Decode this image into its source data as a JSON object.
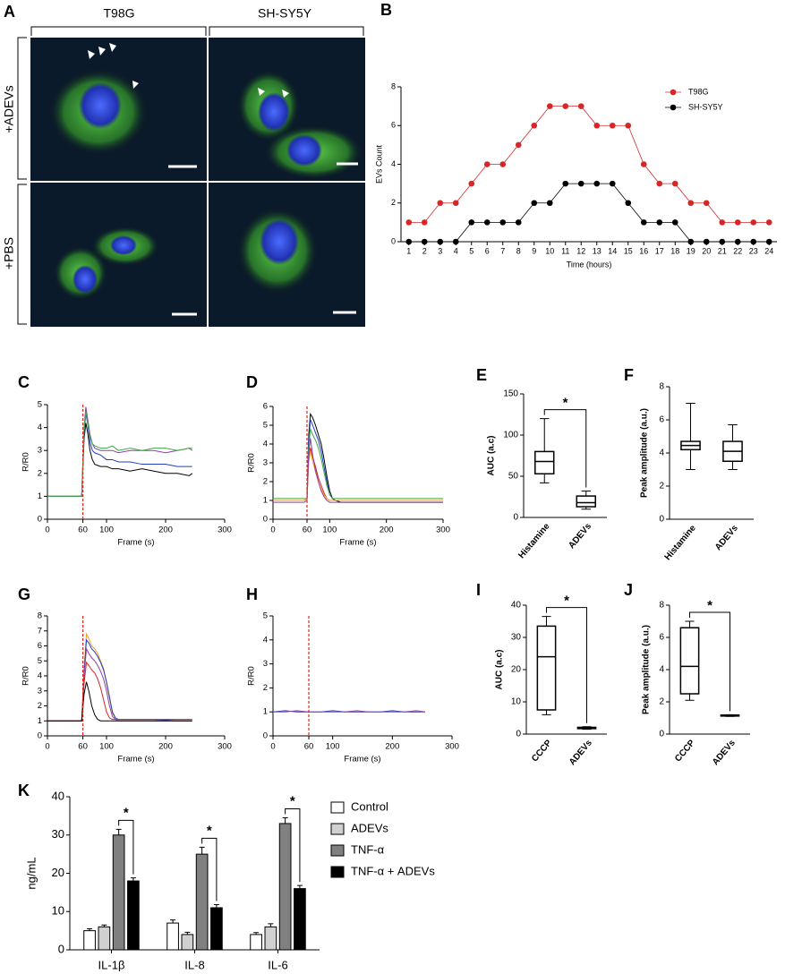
{
  "micrograph": {
    "label": "A",
    "columns": [
      "T98G",
      "SH-SY5Y"
    ],
    "rows": [
      "+ADEVs",
      "+PBS"
    ]
  },
  "chart_data": [
    {
      "label": "B",
      "type": "line",
      "markers": true,
      "categories": [
        "1",
        "2",
        "3",
        "4",
        "5",
        "6",
        "7",
        "8",
        "9",
        "10",
        "11",
        "12",
        "13",
        "14",
        "15",
        "16",
        "17",
        "18",
        "19",
        "20",
        "21",
        "22",
        "23",
        "24"
      ],
      "series": [
        {
          "name": "T98G",
          "color": "#d62728",
          "values": [
            1,
            1,
            2,
            2,
            3,
            4,
            4,
            5,
            6,
            7,
            7,
            7,
            6,
            6,
            6,
            4,
            3,
            3,
            2,
            2,
            1,
            1,
            1,
            1
          ]
        },
        {
          "name": "SH-SY5Y",
          "color": "#000000",
          "values": [
            0,
            0,
            0,
            0,
            1,
            1,
            1,
            1,
            2,
            2,
            3,
            3,
            3,
            3,
            2,
            1,
            1,
            1,
            0,
            0,
            0,
            0,
            0,
            0
          ]
        }
      ],
      "ylim": [
        0,
        8
      ],
      "yticks": [
        0,
        2,
        4,
        6,
        8
      ],
      "xlabel": "Time (hours)",
      "ylabel": "EVs Count",
      "legend": "upper right"
    },
    {
      "label": "C",
      "type": "line",
      "x": [
        0,
        10,
        20,
        30,
        40,
        50,
        58,
        62,
        65,
        68,
        72,
        76,
        80,
        90,
        100,
        110,
        120,
        140,
        160,
        180,
        200,
        220,
        240,
        245
      ],
      "series": [
        {
          "color": "#000000",
          "values": [
            1,
            1,
            1,
            1,
            1,
            1,
            1,
            3.5,
            4.2,
            3.8,
            3.0,
            2.6,
            2.4,
            2.3,
            2.3,
            2.2,
            2.2,
            2.1,
            2.2,
            2.1,
            2.0,
            2.0,
            1.9,
            2.0
          ]
        },
        {
          "color": "#1f3fbf",
          "values": [
            1,
            1,
            1,
            1,
            1,
            1,
            1,
            3.8,
            4.6,
            4.2,
            3.4,
            3.0,
            2.9,
            2.8,
            2.6,
            2.6,
            2.5,
            2.5,
            2.4,
            2.4,
            2.4,
            2.3,
            2.3,
            2.3
          ]
        },
        {
          "color": "#8e3fa8",
          "values": [
            1,
            1,
            1,
            1,
            1,
            1,
            1,
            4.0,
            4.9,
            4.4,
            3.7,
            3.3,
            3.1,
            3.0,
            3.0,
            3.0,
            2.9,
            3.0,
            3.0,
            3.0,
            2.9,
            3.0,
            3.1,
            3.0
          ]
        },
        {
          "color": "#3fa84a",
          "values": [
            1,
            1,
            1,
            1,
            1,
            1,
            1,
            3.9,
            4.7,
            4.3,
            3.6,
            3.3,
            3.2,
            3.1,
            3.1,
            3.2,
            3.0,
            3.1,
            3.0,
            3.1,
            3.1,
            3.0,
            3.1,
            3.1
          ]
        }
      ],
      "xlim": [
        0,
        300
      ],
      "xticks": [
        0,
        60,
        100,
        200,
        300
      ],
      "ylim": [
        0,
        5
      ],
      "yticks": [
        0,
        1,
        2,
        3,
        4,
        5
      ],
      "xlabel": "Frame (s)",
      "ylabel": "R/R0",
      "vline": 60,
      "vline_color": "#e0281f"
    },
    {
      "label": "D",
      "type": "line",
      "x": [
        0,
        20,
        40,
        55,
        60,
        63,
        66,
        70,
        75,
        80,
        85,
        90,
        95,
        100,
        105,
        110,
        120,
        150,
        200,
        250,
        300
      ],
      "series": [
        {
          "color": "#000000",
          "values": [
            1,
            1,
            1,
            1,
            1.1,
            4.5,
            5.6,
            5.4,
            5.0,
            4.5,
            4.0,
            3.2,
            2.3,
            1.5,
            1.1,
            1.0,
            0.9,
            0.9,
            0.9,
            0.9,
            0.9
          ]
        },
        {
          "color": "#1f3fbf",
          "values": [
            1,
            1,
            1,
            1,
            1.1,
            4.2,
            5.3,
            5.0,
            4.6,
            4.2,
            3.6,
            2.8,
            2.0,
            1.3,
            1.1,
            1.0,
            1.0,
            1.0,
            1.0,
            1.0,
            1.0
          ]
        },
        {
          "color": "#3fa84a",
          "values": [
            1.1,
            1.1,
            1.1,
            1.1,
            1.1,
            3.8,
            4.8,
            4.5,
            4.2,
            3.8,
            3.2,
            2.5,
            1.8,
            1.3,
            1.1,
            1.1,
            1.1,
            1.1,
            1.1,
            1.1,
            1.1
          ]
        },
        {
          "color": "#d62728",
          "values": [
            1,
            1,
            1,
            1,
            1.1,
            3.2,
            3.8,
            3.3,
            2.8,
            2.2,
            1.8,
            1.4,
            1.1,
            1.0,
            1.0,
            1.0,
            1.0,
            1.0,
            1.0,
            1.0,
            1.0
          ]
        },
        {
          "color": "#f0a020",
          "values": [
            1,
            1,
            1,
            1,
            1.1,
            3.0,
            3.6,
            3.1,
            2.5,
            2.0,
            1.6,
            1.3,
            1.1,
            1.0,
            1.0,
            1.0,
            1.0,
            1.0,
            1.0,
            1.0,
            1.0
          ]
        },
        {
          "color": "#8e3fa8",
          "values": [
            0.9,
            0.9,
            0.9,
            0.9,
            1.0,
            3.5,
            4.3,
            3.4,
            2.6,
            2.0,
            1.5,
            1.2,
            1.0,
            0.9,
            0.9,
            0.9,
            0.9,
            0.9,
            0.9,
            0.9,
            0.9
          ]
        }
      ],
      "xlim": [
        0,
        300
      ],
      "xticks": [
        0,
        60,
        100,
        200,
        300
      ],
      "ylim": [
        0,
        6
      ],
      "yticks": [
        0,
        1,
        2,
        3,
        4,
        5,
        6
      ],
      "xlabel": "Frame (s)",
      "ylabel": "R/R0",
      "vline": 60,
      "vline_color": "#e0281f"
    },
    {
      "label": "E",
      "type": "box",
      "categories": [
        "Histamine",
        "ADEVs"
      ],
      "stats": [
        {
          "min": 42,
          "q1": 53,
          "median": 68,
          "q3": 80,
          "max": 120
        },
        {
          "min": 10,
          "q1": 13,
          "median": 18,
          "q3": 26,
          "max": 32
        }
      ],
      "ylim": [
        0,
        150
      ],
      "yticks": [
        0,
        50,
        100,
        150
      ],
      "ylabel": "AUC (a.c)",
      "annotations": [
        {
          "text": "*",
          "between": [
            "Histamine",
            "ADEVs"
          ]
        }
      ]
    },
    {
      "label": "F",
      "type": "box",
      "categories": [
        "Histamine",
        "ADEVs"
      ],
      "stats": [
        {
          "min": 3.0,
          "q1": 4.2,
          "median": 4.45,
          "q3": 4.7,
          "max": 7.0
        },
        {
          "min": 3.0,
          "q1": 3.5,
          "median": 4.1,
          "q3": 4.7,
          "max": 5.7
        }
      ],
      "ylim": [
        0,
        8
      ],
      "yticks": [
        0,
        2,
        4,
        6,
        8
      ],
      "ylabel": "Peak amplitude (a.u.)"
    },
    {
      "label": "G",
      "type": "line",
      "x": [
        0,
        20,
        40,
        58,
        62,
        66,
        70,
        75,
        80,
        85,
        90,
        95,
        100,
        105,
        110,
        115,
        120,
        140,
        180,
        220,
        245
      ],
      "series": [
        {
          "color": "#f0a020",
          "values": [
            1,
            1,
            1,
            1,
            4.5,
            6.8,
            6.5,
            6.0,
            5.8,
            5.5,
            5.0,
            4.5,
            3.5,
            2.5,
            1.5,
            1.2,
            1.1,
            1.1,
            1.1,
            1.1,
            1.1
          ]
        },
        {
          "color": "#1f3fbf",
          "values": [
            1,
            1,
            1,
            1,
            4.2,
            6.4,
            6.2,
            5.8,
            5.6,
            5.3,
            4.9,
            4.4,
            3.6,
            2.6,
            1.6,
            1.2,
            1.1,
            1.1,
            1.1,
            1.0,
            1.0
          ]
        },
        {
          "color": "#8e3fa8",
          "values": [
            1,
            1,
            1,
            1,
            4.0,
            5.8,
            5.5,
            5.2,
            5.0,
            4.7,
            4.3,
            3.8,
            3.0,
            2.0,
            1.3,
            1.1,
            1.0,
            1.0,
            1.0,
            1.0,
            1.0
          ]
        },
        {
          "color": "#d62728",
          "values": [
            1,
            1,
            1,
            1,
            3.5,
            4.9,
            4.7,
            4.4,
            4.2,
            3.8,
            3.2,
            2.4,
            1.6,
            1.2,
            1.1,
            1.1,
            1.1,
            1.1,
            1.1,
            1.1,
            1.1
          ]
        },
        {
          "color": "#000000",
          "values": [
            1,
            1,
            1,
            1,
            2.8,
            3.6,
            3.0,
            2.0,
            1.4,
            1.1,
            1.0,
            1.0,
            1.0,
            1.0,
            1.0,
            1.0,
            1.0,
            1.0,
            1.0,
            1.0,
            1.0
          ]
        }
      ],
      "xlim": [
        0,
        300
      ],
      "xticks": [
        0,
        60,
        100,
        200,
        300
      ],
      "ylim": [
        0,
        8
      ],
      "yticks": [
        0,
        1,
        2,
        3,
        4,
        5,
        6,
        7,
        8
      ],
      "xlabel": "Frame (s)",
      "ylabel": "R/R0",
      "vline": 60,
      "vline_color": "#e0281f"
    },
    {
      "label": "H",
      "type": "line",
      "x": [
        0,
        20,
        40,
        60,
        80,
        100,
        120,
        140,
        160,
        180,
        200,
        220,
        240,
        255
      ],
      "series": [
        {
          "color": "#1f3fbf",
          "values": [
            1,
            1.05,
            1,
            1,
            1,
            1.05,
            1,
            1,
            1,
            1,
            1.05,
            1,
            1,
            1
          ]
        },
        {
          "color": "#8e3fa8",
          "values": [
            1,
            1,
            1.05,
            1,
            1,
            1,
            1,
            1.05,
            1,
            1,
            1,
            1,
            1.05,
            1
          ]
        }
      ],
      "xlim": [
        0,
        300
      ],
      "xticks": [
        0,
        60,
        100,
        200,
        300
      ],
      "ylim": [
        0,
        5
      ],
      "yticks": [
        0,
        1,
        2,
        3,
        4,
        5
      ],
      "xlabel": "Frame (s)",
      "ylabel": "R/R0",
      "vline": 60,
      "vline_color": "#e0281f"
    },
    {
      "label": "I",
      "type": "box",
      "categories": [
        "CCCP",
        "ADEVs"
      ],
      "stats": [
        {
          "min": 6,
          "q1": 7.5,
          "median": 24,
          "q3": 33.5,
          "max": 36.5
        },
        {
          "min": 1.5,
          "q1": 1.7,
          "median": 1.9,
          "q3": 2.1,
          "max": 2.3
        }
      ],
      "ylim": [
        0,
        40
      ],
      "yticks": [
        0,
        10,
        20,
        30,
        40
      ],
      "ylabel": "AUC (a.c)",
      "annotations": [
        {
          "text": "*",
          "between": [
            "CCCP",
            "ADEVs"
          ]
        }
      ]
    },
    {
      "label": "J",
      "type": "box",
      "categories": [
        "CCCP",
        "ADEVs"
      ],
      "stats": [
        {
          "min": 2.1,
          "q1": 2.5,
          "median": 4.2,
          "q3": 6.6,
          "max": 7.0
        },
        {
          "min": 1.1,
          "q1": 1.12,
          "median": 1.15,
          "q3": 1.18,
          "max": 1.2
        }
      ],
      "ylim": [
        0,
        8
      ],
      "yticks": [
        0,
        2,
        4,
        6,
        8
      ],
      "ylabel": "Peak amplitude (a.u.)",
      "annotations": [
        {
          "text": "*",
          "between": [
            "CCCP",
            "ADEVs"
          ]
        }
      ]
    },
    {
      "label": "K",
      "type": "bar",
      "categories": [
        "IL-1β",
        "IL-8",
        "IL-6"
      ],
      "series": [
        {
          "name": "Control",
          "color": "#ffffff",
          "values": [
            5,
            7,
            4
          ],
          "errors": [
            0.5,
            0.8,
            0.5
          ]
        },
        {
          "name": "ADEVs",
          "color": "#d0d0d0",
          "values": [
            6,
            4,
            6
          ],
          "errors": [
            0.5,
            0.6,
            0.8
          ]
        },
        {
          "name": "TNF-α",
          "color": "#808080",
          "values": [
            30,
            25,
            33
          ],
          "errors": [
            1.5,
            1.8,
            1.5
          ]
        },
        {
          "name": "TNF-α + ADEVs",
          "color": "#000000",
          "values": [
            18,
            11,
            16
          ],
          "errors": [
            0.8,
            0.8,
            0.8
          ]
        }
      ],
      "ylim": [
        0,
        40
      ],
      "yticks": [
        0,
        10,
        20,
        30,
        40
      ],
      "ylabel": "ng/mL",
      "legend": "right",
      "annotations": [
        {
          "text": "*",
          "category": "IL-1β",
          "between": [
            "TNF-α",
            "TNF-α + ADEVs"
          ]
        },
        {
          "text": "*",
          "category": "IL-8",
          "between": [
            "TNF-α",
            "TNF-α + ADEVs"
          ]
        },
        {
          "text": "*",
          "category": "IL-6",
          "between": [
            "TNF-α",
            "TNF-α + ADEVs"
          ]
        }
      ]
    }
  ]
}
